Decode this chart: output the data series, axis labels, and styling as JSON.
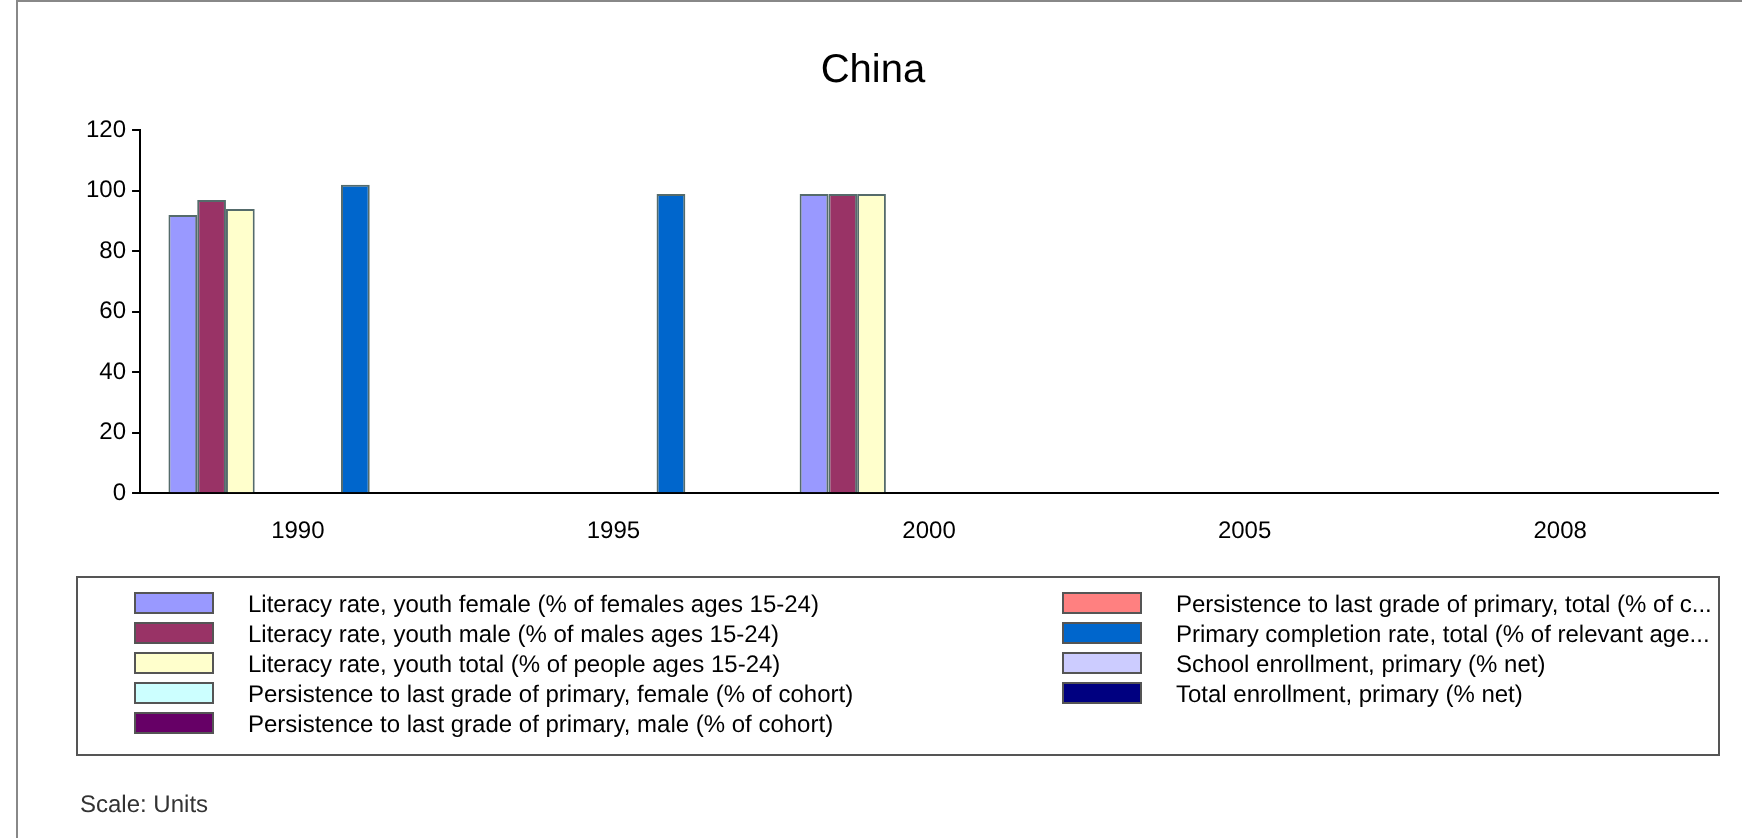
{
  "chart_data": {
    "type": "bar",
    "title": "China",
    "categories": [
      "1990",
      "1995",
      "2000",
      "2005",
      "2008"
    ],
    "series": [
      {
        "name": "Literacy rate, youth female (% of females ages 15-24)",
        "color": "#9999ff",
        "values": [
          92,
          null,
          99,
          null,
          null
        ]
      },
      {
        "name": "Literacy rate, youth male (% of males ages 15-24)",
        "color": "#993366",
        "values": [
          97,
          null,
          99,
          null,
          null
        ]
      },
      {
        "name": "Literacy rate, youth total (% of people ages 15-24)",
        "color": "#ffffcc",
        "values": [
          94,
          null,
          99,
          null,
          null
        ]
      },
      {
        "name": "Persistence to last grade of primary, female (% of cohort)",
        "color": "#ccffff",
        "values": [
          null,
          null,
          null,
          null,
          null
        ]
      },
      {
        "name": "Persistence to last grade of primary, male (% of cohort)",
        "color": "#660066",
        "values": [
          null,
          null,
          null,
          null,
          null
        ]
      },
      {
        "name": "Persistence to last grade of primary, total (% of c...",
        "color": "#ff8080",
        "values": [
          null,
          null,
          null,
          null,
          null
        ]
      },
      {
        "name": "Primary completion rate, total (% of relevant age...",
        "color": "#0066cc",
        "values": [
          102,
          99,
          null,
          null,
          null
        ]
      },
      {
        "name": "School enrollment, primary (% net)",
        "color": "#ccccff",
        "values": [
          null,
          null,
          null,
          null,
          null
        ]
      },
      {
        "name": "Total enrollment, primary (% net)",
        "color": "#000080",
        "values": [
          null,
          null,
          null,
          null,
          null
        ]
      }
    ],
    "ylim": [
      0,
      120
    ],
    "yticks": [
      0,
      20,
      40,
      60,
      80,
      100,
      120
    ],
    "grid": false,
    "legend": "bottom",
    "annotations": [
      "Scale: Units"
    ]
  }
}
